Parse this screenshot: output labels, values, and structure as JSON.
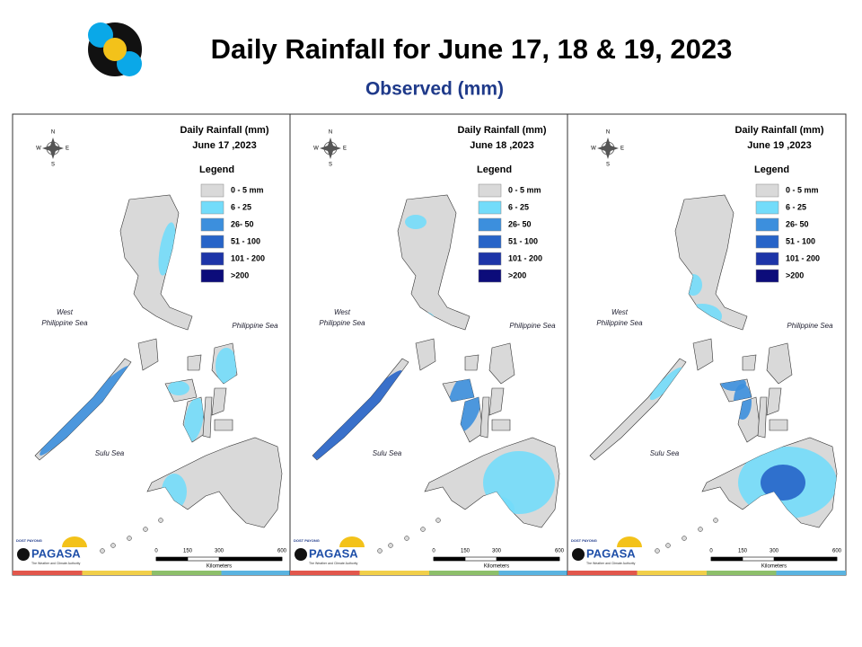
{
  "header": {
    "title": "Daily Rainfall for June 17, 18 & 19, 2023",
    "subtitle": "Observed (mm)"
  },
  "panels": [
    {
      "heading": "Daily Rainfall (mm)",
      "date": "June 17 ,2023"
    },
    {
      "heading": "Daily Rainfall (mm)",
      "date": "June 18 ,2023"
    },
    {
      "heading": "Daily Rainfall (mm)",
      "date": "June 19 ,2023"
    }
  ],
  "legend": {
    "title": "Legend",
    "items": [
      {
        "label": "0 - 5 mm",
        "color": "#d9d9d9"
      },
      {
        "label": "6 - 25",
        "color": "#73dcfa"
      },
      {
        "label": "26- 50",
        "color": "#3c8fdd"
      },
      {
        "label": "51 - 100",
        "color": "#2764c8"
      },
      {
        "label": "101 - 200",
        "color": "#1d35a8"
      },
      {
        "label": ">200",
        "color": "#0c0c7a"
      }
    ]
  },
  "map_labels": {
    "west_sea": "West",
    "west_sea_2": "Philippine Sea",
    "east_sea": "Philippine Sea",
    "south_sea": "Sulu Sea"
  },
  "compass": {
    "n": "N",
    "s": "S",
    "e": "E",
    "w": "W"
  },
  "scale": {
    "ticks": [
      0,
      150,
      300,
      600
    ],
    "range": [
      0,
      600
    ],
    "unit": "Kilometers"
  },
  "logo": {
    "small": "DOST PAYONG",
    "brand": "PAGASA",
    "tagline": "The Weather and Climate Authority"
  }
}
